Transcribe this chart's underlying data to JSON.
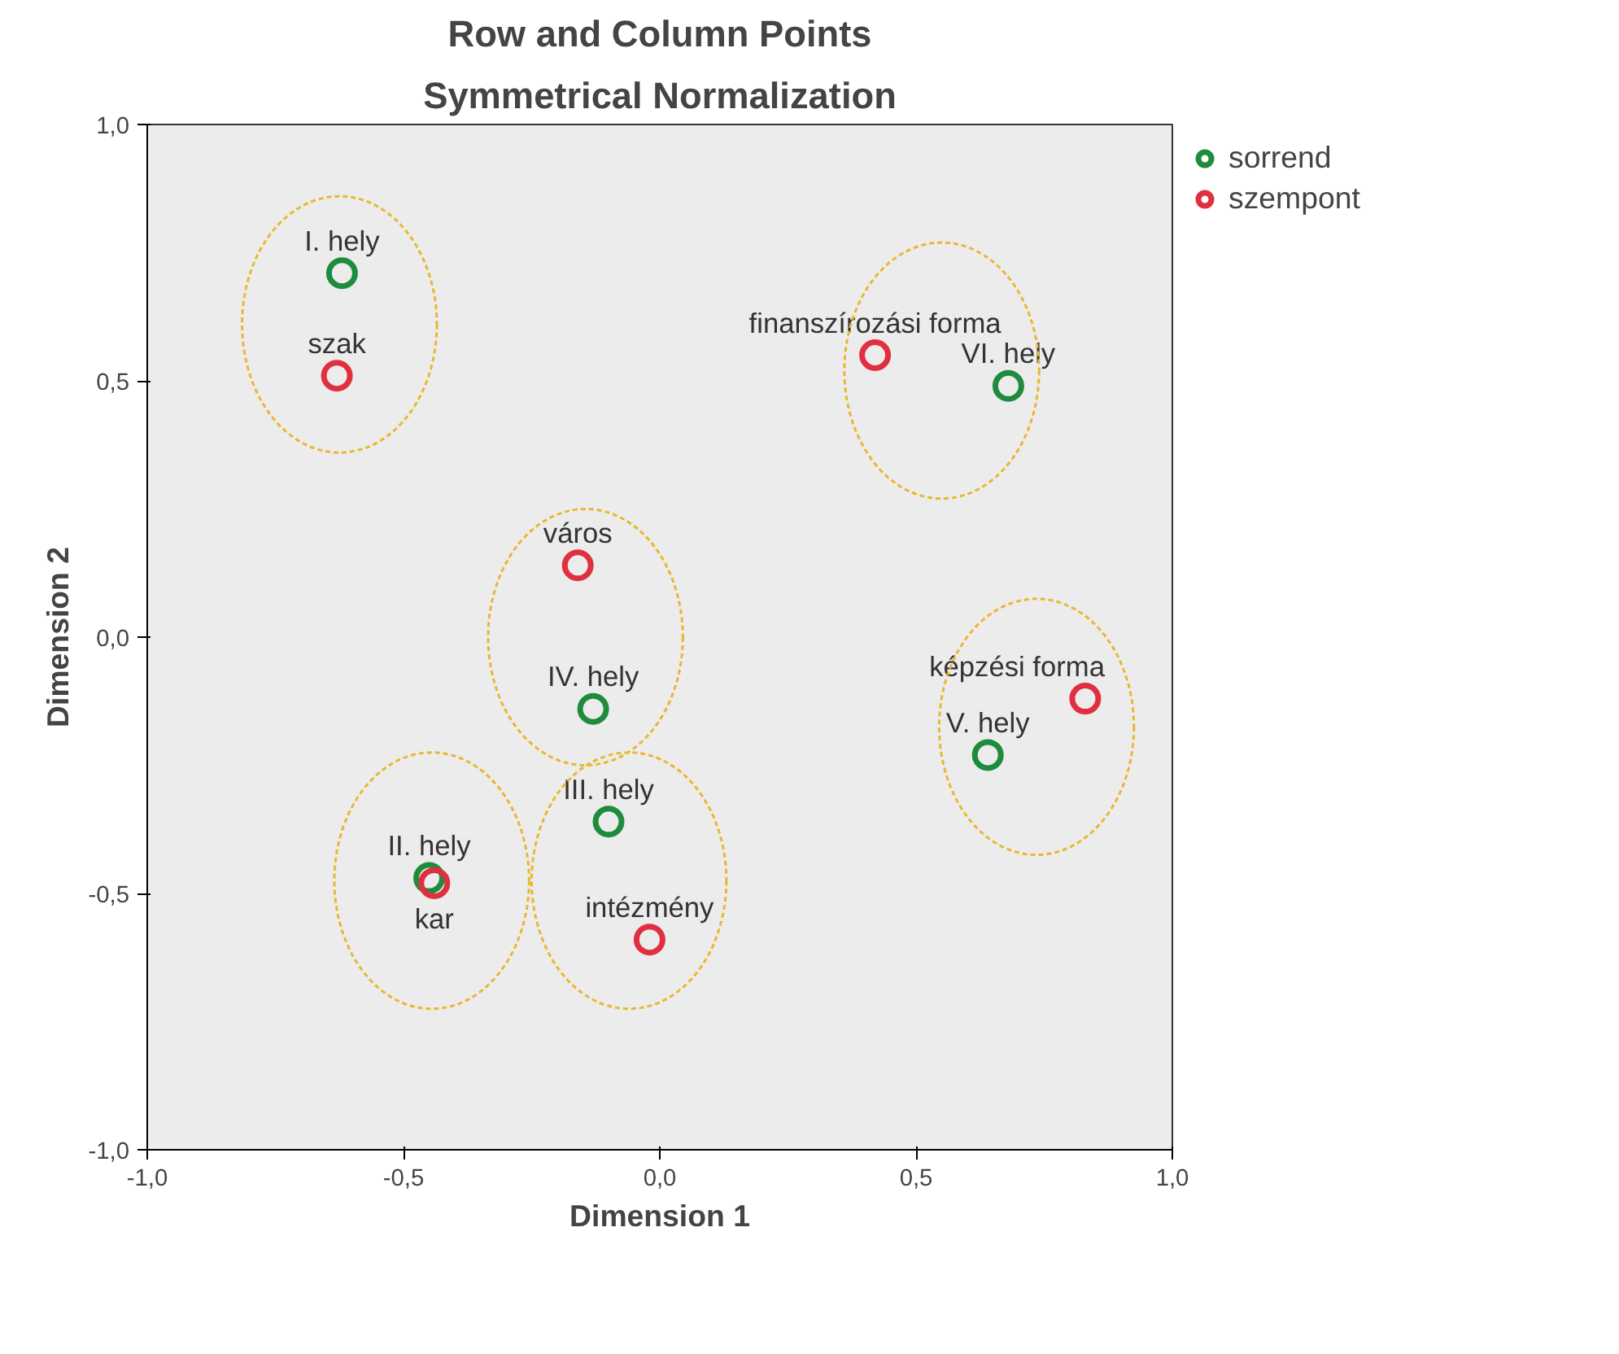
{
  "chart_data": {
    "type": "scatter",
    "title": "Row and Column Points",
    "subtitle": "Symmetrical Normalization",
    "xlabel": "Dimension 1",
    "ylabel": "Dimension 2",
    "xlim": [
      -1,
      1
    ],
    "ylim": [
      -1,
      1
    ],
    "xticks": [
      {
        "value": -1,
        "label": "-1,0"
      },
      {
        "value": -0.5,
        "label": "-0,5"
      },
      {
        "value": 0,
        "label": "0,0"
      },
      {
        "value": 0.5,
        "label": "0,5"
      },
      {
        "value": 1,
        "label": "1,0"
      }
    ],
    "yticks": [
      {
        "value": -1,
        "label": "-1,0"
      },
      {
        "value": -0.5,
        "label": "-0,5"
      },
      {
        "value": 0,
        "label": "0,0"
      },
      {
        "value": 0.5,
        "label": "0,5"
      },
      {
        "value": 1,
        "label": "1,0"
      }
    ],
    "grid": false,
    "legend": "top right",
    "marker": "circle",
    "series": [
      {
        "name": "sorrend",
        "color": "#1e8c3c",
        "x": [
          -0.62,
          0.68,
          -0.13,
          0.64,
          -0.1,
          -0.45
        ],
        "values": [
          0.71,
          0.49,
          -0.14,
          -0.23,
          -0.36,
          -0.47
        ],
        "value_labels": [
          "I. hely",
          "VI. hely",
          "IV. hely",
          "V. hely",
          "III. hely",
          "II. hely"
        ]
      },
      {
        "name": "szempont",
        "color": "#e03040",
        "x": [
          -0.63,
          0.42,
          -0.16,
          0.83,
          -0.02,
          -0.44
        ],
        "values": [
          0.51,
          0.55,
          0.14,
          -0.12,
          -0.59,
          -0.48
        ],
        "value_labels": [
          "szak",
          "finanszírozási forma",
          "város",
          "képzési forma",
          "intézmény",
          "kar"
        ]
      }
    ]
  }
}
